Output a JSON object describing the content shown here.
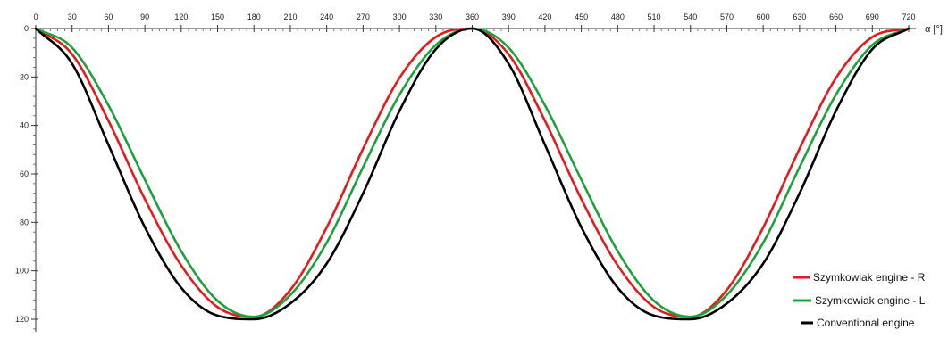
{
  "chart_data": {
    "type": "line",
    "xlabel": "α [°]",
    "ylabel": "",
    "xlim": [
      0,
      720
    ],
    "ylim": [
      0,
      120
    ],
    "y_axis_inverted": true,
    "x_ticks": [
      0,
      30,
      60,
      90,
      120,
      150,
      180,
      210,
      240,
      270,
      300,
      330,
      360,
      390,
      420,
      450,
      480,
      510,
      540,
      570,
      600,
      630,
      660,
      690,
      720
    ],
    "y_ticks": [
      0,
      20,
      40,
      60,
      80,
      100,
      120
    ],
    "grid": false,
    "legend_position": "bottom-right",
    "x": [
      0,
      30,
      60,
      90,
      120,
      150,
      180,
      210,
      240,
      270,
      300,
      330,
      360,
      390,
      420,
      450,
      480,
      510,
      540,
      570,
      600,
      630,
      660,
      690,
      720
    ],
    "series": [
      {
        "name": "Szymkowiak engine - R",
        "color": "#e8191b",
        "values": [
          0,
          10.6,
          38.1,
          70.4,
          97.8,
          115.0,
          119.0,
          107.9,
          82.1,
          49.6,
          20.4,
          3.5,
          0,
          10.6,
          38.1,
          70.4,
          97.8,
          115.0,
          119.0,
          107.9,
          82.1,
          49.6,
          20.4,
          3.5,
          0
        ]
      },
      {
        "name": "Szymkowiak engine - L",
        "color": "#1aa33c",
        "values": [
          0,
          7.9,
          31.7,
          62.4,
          91.9,
          112.4,
          119.0,
          110.0,
          88.4,
          57.2,
          27.3,
          6.8,
          0,
          7.9,
          31.7,
          62.4,
          91.9,
          112.4,
          119.0,
          110.0,
          88.4,
          57.2,
          27.3,
          6.8,
          0
        ]
      },
      {
        "name": "Conventional engine",
        "color": "#000000",
        "values": [
          0,
          14.5,
          48.0,
          82.0,
          107.0,
          118.5,
          120.0,
          113.5,
          97.0,
          68.0,
          34.0,
          8.5,
          0,
          14.5,
          48.0,
          82.0,
          107.0,
          118.5,
          120.0,
          113.5,
          97.0,
          68.0,
          34.0,
          8.5,
          0
        ]
      }
    ]
  }
}
